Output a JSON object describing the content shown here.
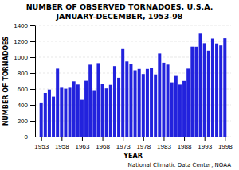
{
  "chart_data": {
    "type": "bar",
    "title": "NUMBER OF OBSERVED TORNADOES, U.S.A.",
    "subtitle": "JANUARY-DECEMBER, 1953-98",
    "x_label": "YEAR",
    "y_label": "NUMBER OF TORNADOES",
    "annotations": [
      "National Climatic Data Center, NOAA"
    ],
    "x": [
      1953,
      1954,
      1955,
      1956,
      1957,
      1958,
      1959,
      1960,
      1961,
      1962,
      1963,
      1964,
      1965,
      1966,
      1967,
      1968,
      1969,
      1970,
      1971,
      1972,
      1973,
      1974,
      1975,
      1976,
      1977,
      1978,
      1979,
      1980,
      1981,
      1982,
      1983,
      1984,
      1985,
      1986,
      1987,
      1988,
      1989,
      1990,
      1991,
      1992,
      1993,
      1994,
      1995,
      1996,
      1997,
      1998
    ],
    "values": [
      421,
      550,
      593,
      504,
      856,
      616,
      604,
      616,
      697,
      657,
      464,
      704,
      906,
      585,
      926,
      660,
      608,
      653,
      888,
      741,
      1102,
      947,
      919,
      835,
      852,
      788,
      852,
      866,
      783,
      1046,
      931,
      907,
      684,
      764,
      656,
      702,
      856,
      1133,
      1132,
      1297,
      1176,
      1082,
      1235,
      1173,
      1148,
      1239
    ],
    "color": "#2222dd",
    "xlim": [
      1951.5,
      1999.5
    ],
    "xticks": [
      1953,
      1958,
      1963,
      1968,
      1973,
      1978,
      1983,
      1988,
      1993,
      1998
    ],
    "ylim": [
      0,
      1400
    ],
    "yticks": [
      0,
      200,
      400,
      600,
      800,
      1000,
      1200,
      1400
    ],
    "grid": true
  }
}
